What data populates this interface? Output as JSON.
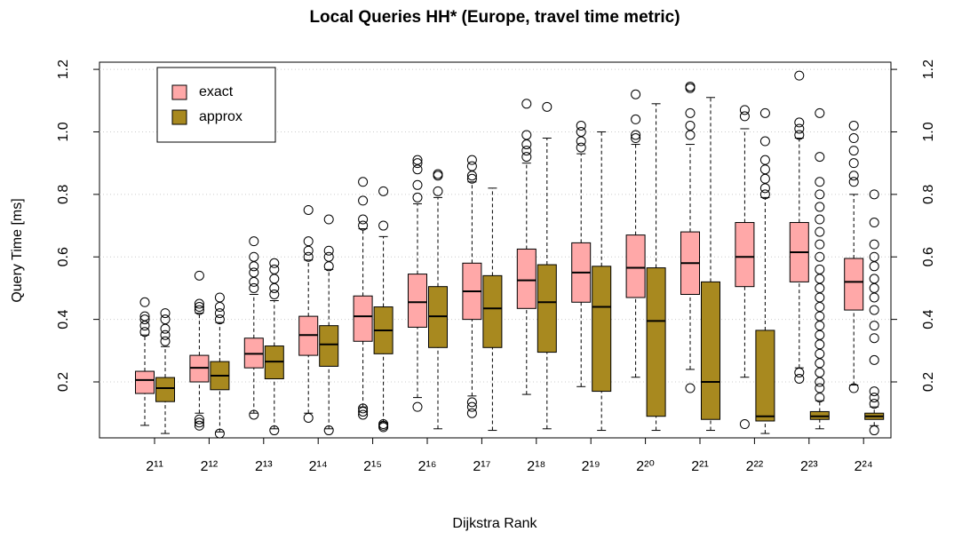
{
  "chart_data": {
    "type": "boxplot",
    "title": "Local Queries HH* (Europe, travel time metric)",
    "x_label": "Dijkstra Rank",
    "y_label": "Query Time [ms]",
    "categories": [
      "2¹¹",
      "2¹²",
      "2¹³",
      "2¹⁴",
      "2¹⁵",
      "2¹⁶",
      "2¹⁷",
      "2¹⁸",
      "2¹⁹",
      "2²⁰",
      "2²¹",
      "2²²",
      "2²³",
      "2²⁴"
    ],
    "ylim": [
      0.021,
      1.223
    ],
    "yticks": [
      0.2,
      0.4,
      0.6,
      0.8,
      {
        "value": 1,
        "label": "1.0"
      },
      1.2
    ],
    "grid": true,
    "legend": "topleft",
    "series": [
      {
        "name": "exact",
        "color": "#ffa8a8",
        "boxes": [
          {
            "min": 0.061,
            "q1": 0.163,
            "median": 0.206,
            "q3": 0.234,
            "max": 0.35,
            "outliers": [
              0.36,
              0.38,
              0.4,
              0.41,
              0.455
            ]
          },
          {
            "min": 0.1,
            "q1": 0.2,
            "median": 0.245,
            "q3": 0.285,
            "max": 0.42,
            "outliers": [
              0.06,
              0.07,
              0.08,
              0.43,
              0.44,
              0.45,
              0.54
            ]
          },
          {
            "min": 0.1,
            "q1": 0.245,
            "median": 0.29,
            "q3": 0.34,
            "max": 0.48,
            "outliers": [
              0.095,
              0.5,
              0.52,
              0.55,
              0.57,
              0.6,
              0.65
            ]
          },
          {
            "min": 0.1,
            "q1": 0.285,
            "median": 0.35,
            "q3": 0.41,
            "max": 0.59,
            "outliers": [
              0.085,
              0.6,
              0.62,
              0.65,
              0.75
            ]
          },
          {
            "min": 0.12,
            "q1": 0.33,
            "median": 0.41,
            "q3": 0.475,
            "max": 0.69,
            "outliers": [
              0.095,
              0.105,
              0.115,
              0.7,
              0.72,
              0.78,
              0.84
            ]
          },
          {
            "min": 0.15,
            "q1": 0.375,
            "median": 0.455,
            "q3": 0.545,
            "max": 0.77,
            "outliers": [
              0.12,
              0.79,
              0.83,
              0.88,
              0.9,
              0.91
            ]
          },
          {
            "min": 0.155,
            "q1": 0.4,
            "median": 0.49,
            "q3": 0.58,
            "max": 0.84,
            "outliers": [
              0.1,
              0.12,
              0.135,
              0.85,
              0.86,
              0.89,
              0.91
            ]
          },
          {
            "min": 0.16,
            "q1": 0.435,
            "median": 0.525,
            "q3": 0.625,
            "max": 0.9,
            "outliers": [
              0.92,
              0.94,
              0.96,
              0.99,
              1.09
            ]
          },
          {
            "min": 0.185,
            "q1": 0.455,
            "median": 0.55,
            "q3": 0.645,
            "max": 0.93,
            "outliers": [
              0.95,
              0.97,
              1.0,
              1.02
            ]
          },
          {
            "min": 0.215,
            "q1": 0.47,
            "median": 0.565,
            "q3": 0.67,
            "max": 0.96,
            "outliers": [
              0.98,
              0.99,
              1.04,
              1.12
            ]
          },
          {
            "min": 0.24,
            "q1": 0.48,
            "median": 0.58,
            "q3": 0.68,
            "max": 0.96,
            "outliers": [
              0.18,
              0.99,
              1.02,
              1.06,
              1.14,
              1.145
            ]
          },
          {
            "min": 0.215,
            "q1": 0.505,
            "median": 0.6,
            "q3": 0.71,
            "max": 1.01,
            "outliers": [
              0.065,
              1.05,
              1.07
            ]
          },
          {
            "min": 0.245,
            "q1": 0.52,
            "median": 0.615,
            "q3": 0.71,
            "max": 0.98,
            "outliers": [
              0.21,
              0.23,
              0.99,
              1.01,
              1.03,
              1.18
            ]
          },
          {
            "min": 0.19,
            "q1": 0.43,
            "median": 0.52,
            "q3": 0.595,
            "max": 0.8,
            "outliers": [
              0.18,
              0.84,
              0.86,
              0.9,
              0.94,
              0.98,
              1.02
            ]
          }
        ]
      },
      {
        "name": "approx",
        "color": "#a8891f",
        "boxes": [
          {
            "min": 0.035,
            "q1": 0.137,
            "median": 0.18,
            "q3": 0.214,
            "max": 0.313,
            "outliers": [
              0.33,
              0.35,
              0.37,
              0.4,
              0.42
            ]
          },
          {
            "min": 0.04,
            "q1": 0.175,
            "median": 0.22,
            "q3": 0.265,
            "max": 0.39,
            "outliers": [
              0.035,
              0.4,
              0.42,
              0.44,
              0.47
            ]
          },
          {
            "min": 0.05,
            "q1": 0.21,
            "median": 0.265,
            "q3": 0.315,
            "max": 0.46,
            "outliers": [
              0.045,
              0.48,
              0.5,
              0.53,
              0.56,
              0.58
            ]
          },
          {
            "min": 0.05,
            "q1": 0.25,
            "median": 0.32,
            "q3": 0.38,
            "max": 0.56,
            "outliers": [
              0.045,
              0.57,
              0.6,
              0.62,
              0.72
            ]
          },
          {
            "min": 0.07,
            "q1": 0.29,
            "median": 0.365,
            "q3": 0.44,
            "max": 0.665,
            "outliers": [
              0.055,
              0.06,
              0.065,
              0.7,
              0.81
            ]
          },
          {
            "min": 0.05,
            "q1": 0.31,
            "median": 0.41,
            "q3": 0.505,
            "max": 0.79,
            "outliers": [
              0.81,
              0.86,
              0.865
            ]
          },
          {
            "min": 0.045,
            "q1": 0.31,
            "median": 0.435,
            "q3": 0.54,
            "max": 0.82,
            "outliers": []
          },
          {
            "min": 0.05,
            "q1": 0.295,
            "median": 0.455,
            "q3": 0.575,
            "max": 0.98,
            "outliers": [
              1.08
            ]
          },
          {
            "min": 0.045,
            "q1": 0.17,
            "median": 0.44,
            "q3": 0.57,
            "max": 1.0,
            "outliers": []
          },
          {
            "min": 0.045,
            "q1": 0.09,
            "median": 0.395,
            "q3": 0.565,
            "max": 1.09,
            "outliers": []
          },
          {
            "min": 0.045,
            "q1": 0.08,
            "median": 0.2,
            "q3": 0.52,
            "max": 1.11,
            "outliers": []
          },
          {
            "min": 0.035,
            "q1": 0.075,
            "median": 0.09,
            "q3": 0.365,
            "max": 0.79,
            "outliers": [
              0.8,
              0.82,
              0.85,
              0.88,
              0.91,
              0.97,
              1.06
            ]
          },
          {
            "min": 0.05,
            "q1": 0.08,
            "median": 0.09,
            "q3": 0.105,
            "max": 0.14,
            "outliers": [
              0.15,
              0.18,
              0.2,
              0.23,
              0.26,
              0.29,
              0.32,
              0.35,
              0.38,
              0.41,
              0.44,
              0.47,
              0.5,
              0.53,
              0.56,
              0.6,
              0.64,
              0.68,
              0.72,
              0.76,
              0.8,
              0.84,
              0.92,
              1.06
            ]
          },
          {
            "min": 0.06,
            "q1": 0.08,
            "median": 0.09,
            "q3": 0.1,
            "max": 0.12,
            "outliers": [
              0.045,
              0.13,
              0.15,
              0.17,
              0.27,
              0.34,
              0.38,
              0.43,
              0.47,
              0.5,
              0.53,
              0.57,
              0.6,
              0.64,
              0.71,
              0.8
            ]
          }
        ]
      }
    ]
  }
}
